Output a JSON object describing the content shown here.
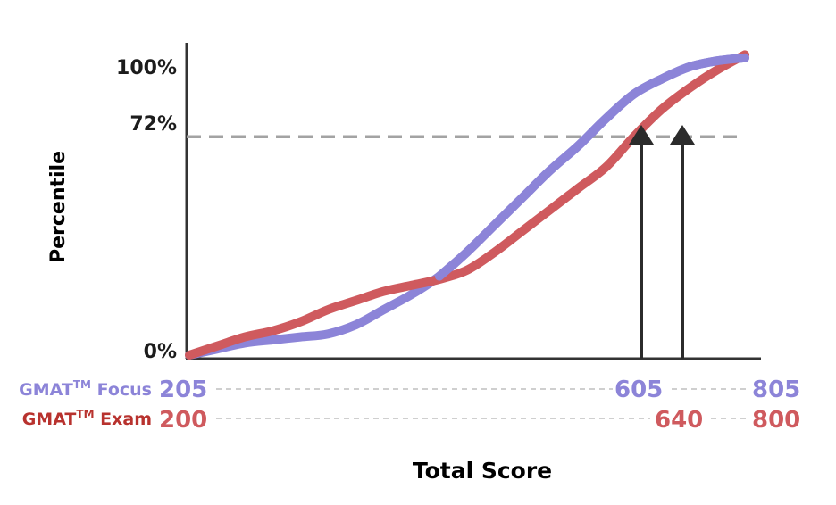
{
  "chart_data": {
    "type": "line",
    "ylabel": "Percentile",
    "xlabel": "Total Score",
    "y_ticks": [
      "100%",
      "72%",
      "0%"
    ],
    "reference_line": {
      "label": "72%",
      "value": 72
    },
    "scales": [
      {
        "name": "GMAT",
        "tm": "TM",
        "suffix": " Focus",
        "color": "#8c84d8",
        "ticks": [
          "205",
          "605",
          "805"
        ],
        "values": [
          205,
          605,
          805
        ]
      },
      {
        "name": "GMAT",
        "tm": "TM",
        "suffix": " Exam",
        "color": "#cf5a5e",
        "ticks": [
          "200",
          "640",
          "800"
        ],
        "values": [
          200,
          640,
          800
        ]
      }
    ],
    "series": [
      {
        "name": "GMAT Focus",
        "color": "#8c84d8",
        "x": [
          0,
          5,
          10,
          15,
          20,
          25,
          30,
          35,
          40,
          45,
          50,
          55,
          60,
          65,
          70,
          75,
          80,
          85,
          90,
          95,
          100
        ],
        "y": [
          0,
          2,
          4,
          5,
          6,
          7,
          10,
          15,
          20,
          26,
          34,
          43,
          52,
          61,
          69,
          78,
          86,
          91,
          95,
          97,
          98
        ]
      },
      {
        "name": "GMAT Exam",
        "color": "#cf5a5e",
        "x": [
          0,
          5,
          10,
          15,
          20,
          25,
          30,
          35,
          40,
          45,
          50,
          55,
          60,
          65,
          70,
          75,
          80,
          85,
          90,
          95,
          100
        ],
        "y": [
          0,
          3,
          6,
          8,
          11,
          15,
          18,
          21,
          23,
          25,
          28,
          34,
          41,
          48,
          55,
          62,
          72,
          81,
          88,
          94,
          99
        ]
      }
    ],
    "arrows": [
      {
        "scale": "GMAT Focus",
        "score": 605
      },
      {
        "scale": "GMAT Exam",
        "score": 640
      }
    ]
  }
}
